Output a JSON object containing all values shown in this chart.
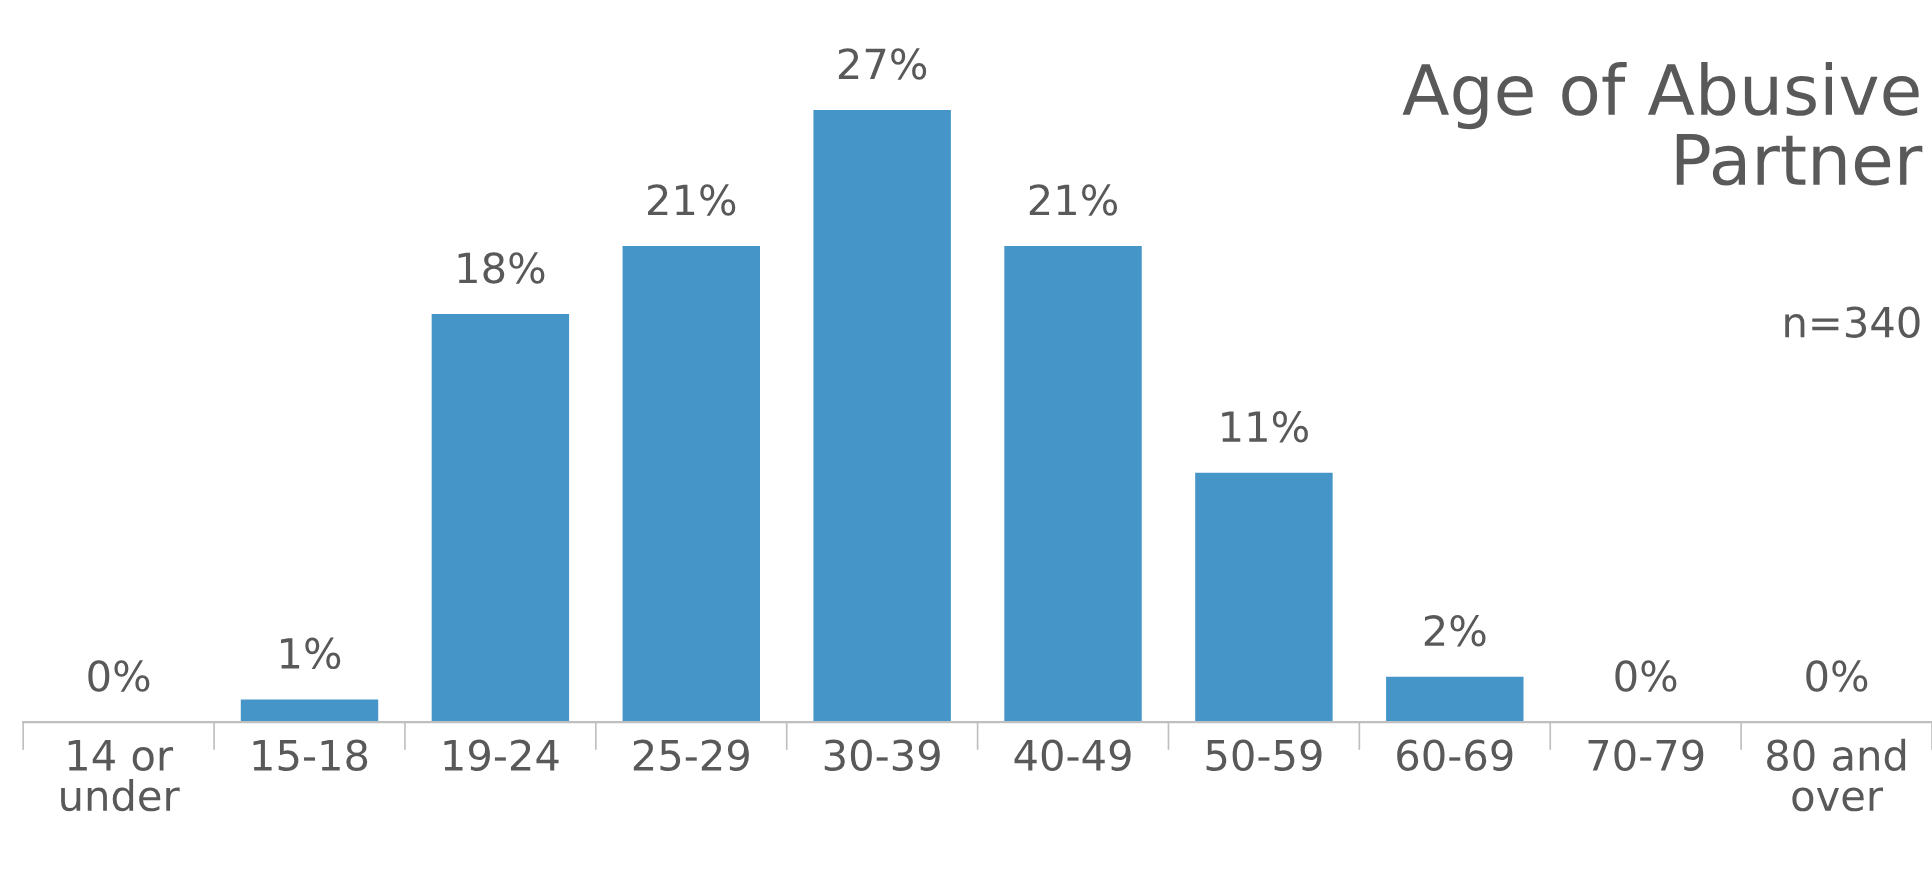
{
  "chart_data": {
    "type": "bar",
    "title": "Age of Abusive\nPartner",
    "subtitle": "n=340",
    "categories": [
      "14 or\nunder",
      "15-18",
      "19-24",
      "25-29",
      "30-39",
      "40-49",
      "50-59",
      "60-69",
      "70-79",
      "80 and\nover"
    ],
    "values": [
      0,
      1,
      18,
      21,
      27,
      21,
      11,
      2,
      0,
      0
    ],
    "value_labels": [
      "0%",
      "1%",
      "18%",
      "21%",
      "27%",
      "21%",
      "11%",
      "2%",
      "0%",
      "0%"
    ],
    "color": "#4595c8",
    "grid": false,
    "legend": false
  }
}
